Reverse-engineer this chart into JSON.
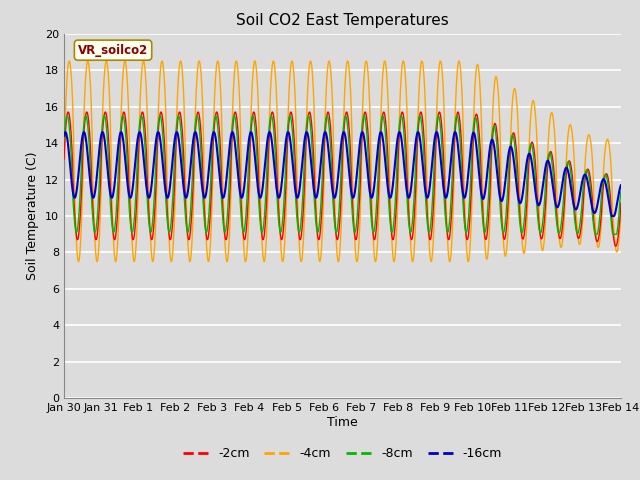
{
  "title": "Soil CO2 East Temperatures",
  "xlabel": "Time",
  "ylabel": "Soil Temperature (C)",
  "ylim": [
    0,
    20
  ],
  "yticks": [
    0,
    2,
    4,
    6,
    8,
    10,
    12,
    14,
    16,
    18,
    20
  ],
  "background_color": "#dcdcdc",
  "plot_bg_color": "#dcdcdc",
  "grid_color": "white",
  "colors": {
    "-2cm": "#ff0000",
    "-4cm": "#ffa500",
    "-8cm": "#00bb00",
    "-16cm": "#0000cc"
  },
  "legend_label": "VR_soilco2",
  "tick_labels": [
    "Jan 30",
    "Jan 31",
    "Feb 1",
    "Feb 2",
    "Feb 3",
    "Feb 4",
    "Feb 5",
    "Feb 6",
    "Feb 7",
    "Feb 8",
    "Feb 9",
    "Feb 10",
    "Feb 11",
    "Feb 12",
    "Feb 13",
    "Feb 14"
  ],
  "tick_positions": [
    0,
    1,
    2,
    3,
    4,
    5,
    6,
    7,
    8,
    9,
    10,
    11,
    12,
    13,
    14,
    15
  ]
}
